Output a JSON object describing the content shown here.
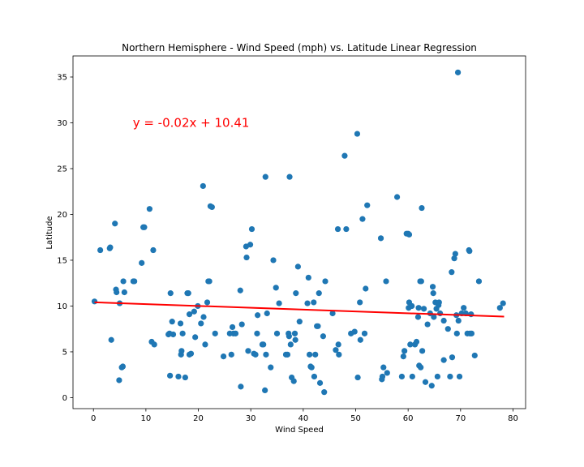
{
  "chart_data": {
    "type": "scatter",
    "title": "Northern Hemisphere - Wind Speed (mph) vs. Latitude Linear Regression",
    "xlabel": "Wind Speed",
    "ylabel": "Latitude",
    "xlim": [
      -3.9,
      82.4
    ],
    "ylim": [
      -1.2,
      37.3
    ],
    "xticks": [
      0,
      10,
      20,
      30,
      40,
      50,
      60,
      70,
      80
    ],
    "yticks": [
      0,
      5,
      10,
      15,
      20,
      25,
      30,
      35
    ],
    "grid": false,
    "colors": {
      "points": "#1f77b4",
      "regression": "#ff0000",
      "annotation": "#ff0000"
    },
    "regression": {
      "slope": -0.02,
      "intercept": 10.41,
      "x_range": [
        0.2,
        78.3
      ]
    },
    "annotation": {
      "text": "y = -0.02x + 10.41",
      "x": 7.5,
      "y": 30.0
    },
    "points": [
      [
        0.2,
        10.5
      ],
      [
        1.3,
        16.1
      ],
      [
        3.1,
        16.3
      ],
      [
        3.2,
        16.4
      ],
      [
        3.4,
        6.3
      ],
      [
        4.1,
        19.0
      ],
      [
        4.3,
        11.8
      ],
      [
        4.4,
        11.5
      ],
      [
        4.9,
        1.9
      ],
      [
        5.0,
        10.3
      ],
      [
        5.4,
        3.3
      ],
      [
        5.6,
        3.4
      ],
      [
        5.7,
        12.7
      ],
      [
        5.9,
        11.5
      ],
      [
        7.6,
        12.7
      ],
      [
        7.8,
        12.7
      ],
      [
        9.2,
        14.7
      ],
      [
        9.5,
        18.6
      ],
      [
        9.7,
        18.6
      ],
      [
        10.7,
        20.6
      ],
      [
        11.1,
        6.1
      ],
      [
        11.4,
        16.1
      ],
      [
        11.6,
        5.8
      ],
      [
        14.3,
        6.9
      ],
      [
        14.5,
        7.0
      ],
      [
        14.6,
        2.4
      ],
      [
        14.7,
        11.4
      ],
      [
        15.0,
        8.3
      ],
      [
        15.2,
        6.9
      ],
      [
        16.2,
        2.3
      ],
      [
        16.6,
        8.1
      ],
      [
        16.7,
        4.7
      ],
      [
        16.8,
        5.1
      ],
      [
        17.0,
        7.0
      ],
      [
        17.5,
        2.2
      ],
      [
        17.9,
        11.4
      ],
      [
        18.1,
        11.4
      ],
      [
        18.3,
        9.1
      ],
      [
        18.3,
        4.7
      ],
      [
        18.6,
        4.8
      ],
      [
        19.2,
        9.4
      ],
      [
        19.4,
        6.6
      ],
      [
        19.9,
        10.0
      ],
      [
        20.5,
        8.1
      ],
      [
        20.9,
        23.1
      ],
      [
        21.0,
        8.8
      ],
      [
        21.3,
        5.8
      ],
      [
        21.7,
        10.4
      ],
      [
        21.9,
        12.7
      ],
      [
        22.1,
        12.7
      ],
      [
        22.3,
        20.9
      ],
      [
        22.6,
        20.8
      ],
      [
        23.2,
        7.0
      ],
      [
        24.8,
        4.5
      ],
      [
        26.0,
        7.0
      ],
      [
        26.3,
        4.7
      ],
      [
        26.5,
        7.7
      ],
      [
        26.7,
        7.0
      ],
      [
        27.1,
        7.0
      ],
      [
        28.0,
        11.7
      ],
      [
        28.1,
        1.2
      ],
      [
        28.3,
        8.0
      ],
      [
        29.1,
        16.5
      ],
      [
        29.2,
        15.3
      ],
      [
        29.5,
        5.1
      ],
      [
        29.9,
        16.7
      ],
      [
        30.2,
        18.4
      ],
      [
        30.6,
        4.8
      ],
      [
        30.9,
        4.7
      ],
      [
        31.2,
        7.0
      ],
      [
        31.3,
        9.0
      ],
      [
        32.2,
        5.8
      ],
      [
        32.4,
        5.8
      ],
      [
        32.7,
        0.8
      ],
      [
        32.8,
        24.1
      ],
      [
        32.9,
        4.7
      ],
      [
        33.1,
        9.2
      ],
      [
        33.8,
        3.3
      ],
      [
        34.3,
        15.0
      ],
      [
        34.8,
        12.0
      ],
      [
        35.0,
        7.0
      ],
      [
        35.4,
        10.3
      ],
      [
        36.7,
        4.7
      ],
      [
        37.0,
        4.7
      ],
      [
        37.2,
        7.0
      ],
      [
        37.3,
        6.7
      ],
      [
        37.4,
        24.1
      ],
      [
        37.6,
        5.8
      ],
      [
        37.8,
        2.2
      ],
      [
        38.2,
        1.8
      ],
      [
        38.4,
        7.0
      ],
      [
        38.5,
        6.3
      ],
      [
        38.6,
        11.4
      ],
      [
        39.0,
        14.3
      ],
      [
        39.3,
        8.3
      ],
      [
        40.8,
        10.3
      ],
      [
        41.0,
        13.1
      ],
      [
        41.2,
        4.7
      ],
      [
        41.4,
        3.4
      ],
      [
        41.6,
        3.3
      ],
      [
        42.0,
        10.4
      ],
      [
        42.1,
        2.3
      ],
      [
        42.3,
        4.7
      ],
      [
        42.6,
        7.8
      ],
      [
        42.8,
        7.8
      ],
      [
        43.0,
        11.4
      ],
      [
        43.2,
        1.6
      ],
      [
        43.8,
        6.7
      ],
      [
        44.0,
        0.6
      ],
      [
        44.2,
        12.7
      ],
      [
        45.6,
        9.2
      ],
      [
        46.2,
        5.2
      ],
      [
        46.6,
        18.4
      ],
      [
        46.7,
        5.8
      ],
      [
        46.8,
        4.7
      ],
      [
        47.9,
        26.4
      ],
      [
        48.2,
        18.4
      ],
      [
        49.1,
        7.0
      ],
      [
        49.8,
        7.2
      ],
      [
        50.3,
        28.8
      ],
      [
        50.4,
        2.2
      ],
      [
        50.8,
        10.4
      ],
      [
        50.9,
        6.3
      ],
      [
        51.3,
        19.5
      ],
      [
        51.7,
        7.0
      ],
      [
        51.9,
        11.9
      ],
      [
        52.2,
        21.0
      ],
      [
        54.8,
        17.4
      ],
      [
        55.0,
        2.0
      ],
      [
        55.1,
        2.3
      ],
      [
        55.3,
        3.3
      ],
      [
        55.8,
        12.7
      ],
      [
        56.0,
        2.7
      ],
      [
        57.9,
        21.9
      ],
      [
        58.8,
        2.3
      ],
      [
        59.1,
        4.5
      ],
      [
        59.3,
        5.1
      ],
      [
        59.7,
        17.9
      ],
      [
        60.0,
        17.9
      ],
      [
        60.1,
        9.8
      ],
      [
        60.2,
        17.8
      ],
      [
        60.2,
        10.4
      ],
      [
        60.4,
        5.8
      ],
      [
        60.7,
        10.0
      ],
      [
        60.8,
        2.3
      ],
      [
        61.3,
        5.8
      ],
      [
        61.6,
        6.1
      ],
      [
        61.9,
        8.8
      ],
      [
        62.0,
        9.8
      ],
      [
        62.1,
        3.5
      ],
      [
        62.3,
        12.7
      ],
      [
        62.4,
        3.3
      ],
      [
        62.5,
        12.7
      ],
      [
        62.6,
        20.7
      ],
      [
        62.7,
        5.1
      ],
      [
        63.0,
        9.7
      ],
      [
        63.3,
        1.7
      ],
      [
        63.7,
        8.0
      ],
      [
        64.2,
        9.2
      ],
      [
        64.5,
        1.3
      ],
      [
        64.7,
        12.1
      ],
      [
        64.8,
        11.4
      ],
      [
        64.9,
        8.8
      ],
      [
        65.2,
        10.4
      ],
      [
        65.4,
        9.7
      ],
      [
        65.6,
        2.3
      ],
      [
        65.8,
        10.1
      ],
      [
        65.9,
        10.4
      ],
      [
        66.1,
        9.2
      ],
      [
        66.8,
        8.4
      ],
      [
        66.8,
        4.1
      ],
      [
        67.6,
        7.5
      ],
      [
        68.0,
        2.3
      ],
      [
        68.3,
        13.7
      ],
      [
        68.4,
        4.4
      ],
      [
        68.8,
        15.2
      ],
      [
        69.0,
        15.7
      ],
      [
        69.2,
        9.0
      ],
      [
        69.3,
        7.0
      ],
      [
        69.5,
        35.5
      ],
      [
        69.6,
        8.4
      ],
      [
        69.8,
        2.3
      ],
      [
        70.2,
        9.2
      ],
      [
        70.6,
        9.8
      ],
      [
        71.0,
        9.2
      ],
      [
        71.3,
        7.0
      ],
      [
        71.6,
        16.1
      ],
      [
        71.7,
        16.0
      ],
      [
        71.8,
        7.0
      ],
      [
        72.0,
        9.1
      ],
      [
        72.1,
        7.0
      ],
      [
        72.7,
        4.6
      ],
      [
        73.5,
        12.7
      ],
      [
        77.5,
        9.8
      ],
      [
        78.1,
        10.3
      ]
    ]
  }
}
